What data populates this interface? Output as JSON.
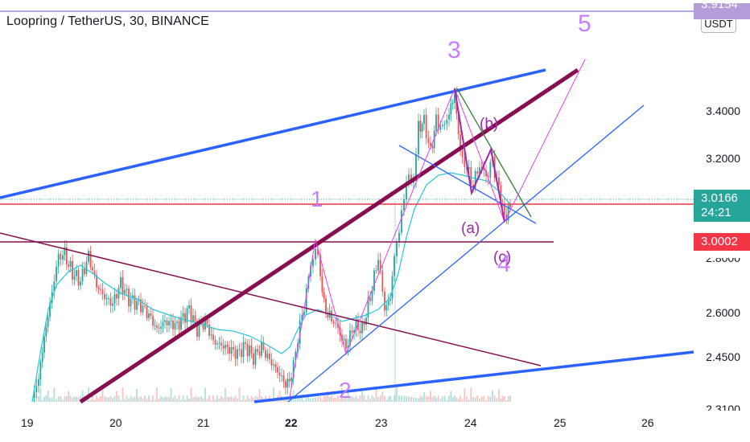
{
  "header": {
    "title": "Loopring / TetherUS, 30, BINANCE",
    "currency_button": "USDT"
  },
  "price_axis": {
    "labels": [
      "3.4000",
      "3.2000",
      "2.8000",
      "2.6000",
      "2.4500",
      "2.3100"
    ],
    "top_cut_label": "3.9154"
  },
  "last_price": {
    "value": "3.0166",
    "countdown": "24:21",
    "color": "#26a69a"
  },
  "line_price": {
    "value": "3.0002",
    "color": "#f23645"
  },
  "date_axis": {
    "labels": [
      "19",
      "20",
      "21",
      "22",
      "23",
      "24",
      "25",
      "26"
    ]
  },
  "annotations": {
    "wave1": "1",
    "wave2": "2",
    "wave3": "3",
    "wave4": "4",
    "wave5": "5",
    "a": "(a)",
    "b": "(b)",
    "c": "(c)"
  },
  "colors": {
    "up": "#26a69a",
    "down": "#ef5350",
    "channel": "#2962ff",
    "trend_maroon": "#880e4f",
    "annotation": "#c77dff"
  }
}
